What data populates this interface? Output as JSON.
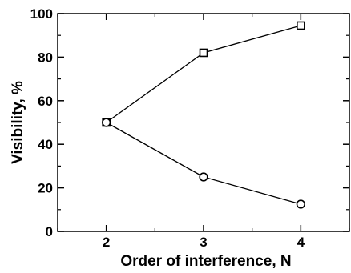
{
  "chart_data": {
    "type": "line",
    "title": "",
    "xlabel": "Order of interference, N",
    "ylabel": "Visibility, %",
    "x": [
      2,
      3,
      4
    ],
    "xlim": [
      1.5,
      4.5
    ],
    "ylim": [
      0,
      100
    ],
    "xticks": [
      2,
      3,
      4
    ],
    "yticks": [
      0,
      20,
      40,
      60,
      80,
      100
    ],
    "grid": false,
    "series": [
      {
        "marker": "square",
        "values": [
          50,
          82,
          94.5
        ]
      },
      {
        "marker": "circle",
        "values": [
          50,
          25,
          12.5
        ]
      }
    ]
  }
}
